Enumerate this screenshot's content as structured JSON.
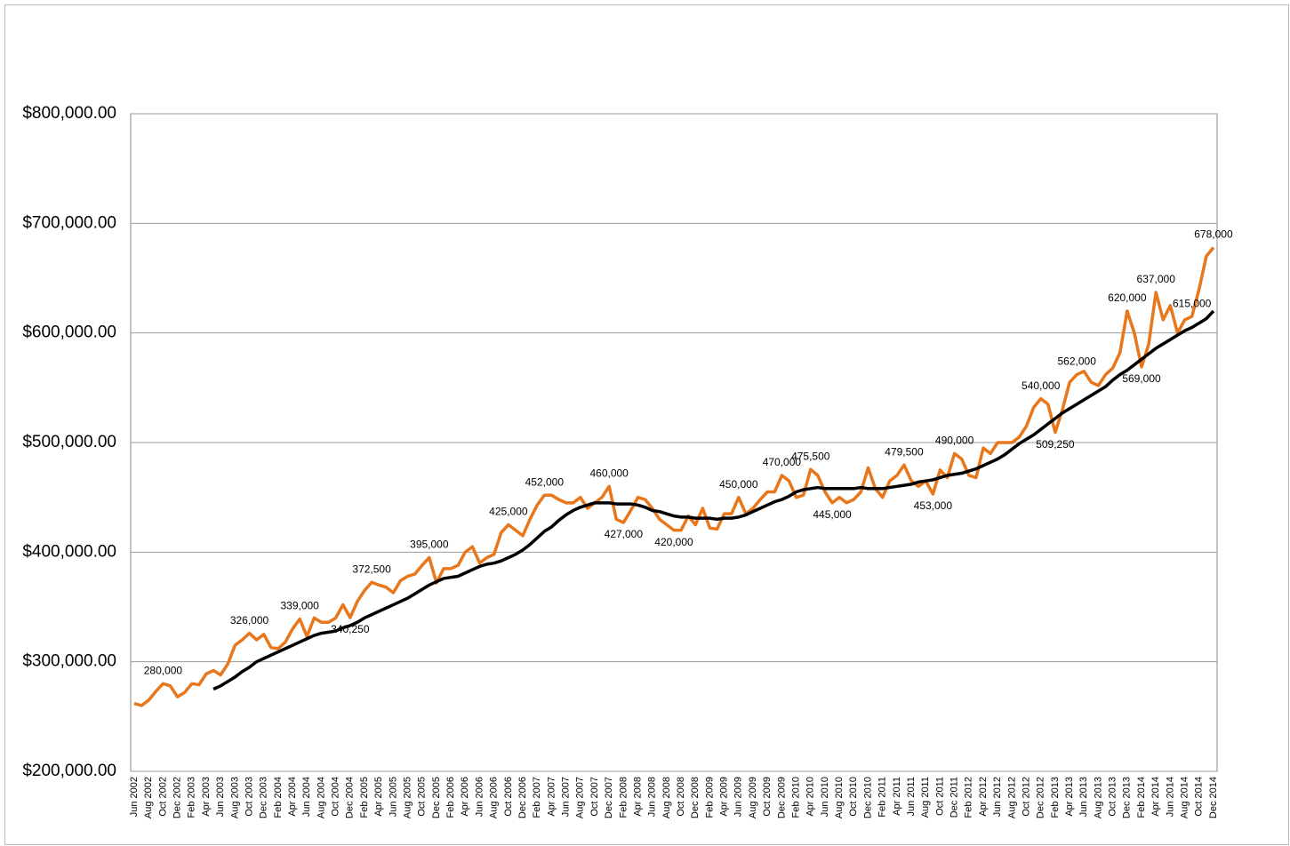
{
  "chart_data": {
    "type": "line",
    "categories": [
      "Jun 2002",
      null,
      "Aug 2002",
      null,
      "Oct 2002",
      null,
      "Dec 2002",
      null,
      "Feb 2003",
      null,
      "Apr 2003",
      null,
      "Jun 2003",
      null,
      "Aug 2003",
      null,
      "Oct 2003",
      null,
      "Dec 2003",
      null,
      "Feb 2004",
      null,
      "Apr 2004",
      null,
      "Jun 2004",
      null,
      "Aug 2004",
      null,
      "Oct 2004",
      null,
      "Dec 2004",
      null,
      "Feb 2005",
      null,
      "Apr 2005",
      null,
      "Jun 2005",
      null,
      "Aug 2005",
      null,
      "Oct 2005",
      null,
      "Dec 2005",
      null,
      "Feb 2006",
      null,
      "Apr 2006",
      null,
      "Jun 2006",
      null,
      "Aug 2006",
      null,
      "Oct 2006",
      null,
      "Dec 2006",
      null,
      "Feb 2007",
      null,
      "Apr 2007",
      null,
      "Jun 2007",
      null,
      "Aug 2007",
      null,
      "Oct 2007",
      null,
      "Dec 2007",
      null,
      "Feb 2008",
      null,
      "Apr 2008",
      null,
      "Jun 2008",
      null,
      "Aug 2008",
      null,
      "Oct 2008",
      null,
      "Dec 2008",
      null,
      "Feb 2009",
      null,
      "Apr 2009",
      null,
      "Jun 2009",
      null,
      "Aug 2009",
      null,
      "Oct 2009",
      null,
      "Dec 2009",
      null,
      "Feb 2010",
      null,
      "Apr 2010",
      null,
      "Jun 2010",
      null,
      "Aug 2010",
      null,
      "Oct 2010",
      null,
      "Dec 2010",
      null,
      "Feb 2011",
      null,
      "Apr 2011",
      null,
      "Jun 2011",
      null,
      "Aug 2011",
      null,
      "Oct 2011",
      null,
      "Dec 2011",
      null,
      "Feb 2012",
      null,
      "Apr 2012",
      null,
      "Jun 2012",
      null,
      "Aug 2012",
      null,
      "Oct 2012",
      null,
      "Dec 2012",
      null,
      "Feb 2013",
      null,
      "Apr 2013",
      null,
      "Jun 2013",
      null,
      "Aug 2013",
      null,
      "Oct 2013",
      null,
      "Dec 2013",
      null,
      "Feb 2014",
      null,
      "Apr 2014",
      null,
      "Jun 2014",
      null,
      "Aug 2014",
      null,
      "Oct 2014",
      null,
      "Dec 2014"
    ],
    "series": [
      {
        "color": "#e8761a",
        "values": [
          262000,
          260000,
          265000,
          273000,
          280000,
          278000,
          268000,
          272000,
          280000,
          279000,
          289000,
          292000,
          288000,
          298000,
          315000,
          320000,
          326000,
          320000,
          325000,
          313000,
          312000,
          318000,
          330000,
          339000,
          323000,
          340000,
          336000,
          336000,
          340000,
          352000,
          340250,
          355000,
          365000,
          372500,
          370000,
          368000,
          363000,
          374000,
          378000,
          380000,
          388000,
          395000,
          372000,
          385000,
          385000,
          388000,
          400000,
          405000,
          390000,
          395000,
          398000,
          418000,
          425000,
          420000,
          415000,
          430000,
          443000,
          452000,
          452000,
          448000,
          445000,
          445000,
          450000,
          440000,
          445000,
          450000,
          460000,
          430000,
          427000,
          438000,
          450000,
          448000,
          440000,
          430000,
          425000,
          420000,
          420000,
          433000,
          425000,
          440000,
          422000,
          421000,
          435000,
          435000,
          450000,
          435000,
          440000,
          448000,
          455000,
          455000,
          470000,
          465000,
          450000,
          452000,
          475500,
          470000,
          455000,
          445000,
          450000,
          445000,
          448000,
          455000,
          477000,
          458000,
          450000,
          465000,
          470000,
          479500,
          465000,
          460000,
          465000,
          453000,
          475000,
          468000,
          490000,
          485000,
          470000,
          468000,
          495000,
          490000,
          500000,
          500000,
          500000,
          505000,
          515000,
          532000,
          540000,
          535000,
          509250,
          530000,
          555000,
          562000,
          565000,
          555000,
          552000,
          562000,
          568000,
          582000,
          620000,
          600000,
          569000,
          590000,
          637000,
          612000,
          625000,
          600000,
          612000,
          615000,
          640000,
          670000,
          678000
        ],
        "value_labels": [
          null,
          null,
          null,
          null,
          "280,000",
          null,
          null,
          null,
          null,
          null,
          null,
          null,
          null,
          null,
          null,
          null,
          "326,000",
          null,
          null,
          null,
          null,
          null,
          null,
          "339,000",
          null,
          null,
          null,
          null,
          null,
          null,
          "340,250",
          null,
          null,
          "372,500",
          null,
          null,
          null,
          null,
          null,
          null,
          null,
          "395,000",
          null,
          null,
          null,
          null,
          null,
          null,
          null,
          null,
          null,
          null,
          "425,000",
          null,
          null,
          null,
          null,
          "452,000",
          null,
          null,
          null,
          null,
          null,
          null,
          null,
          null,
          "460,000",
          null,
          "427,000",
          null,
          null,
          null,
          null,
          null,
          null,
          "420,000",
          null,
          null,
          null,
          null,
          null,
          null,
          null,
          null,
          "450,000",
          null,
          null,
          null,
          null,
          null,
          "470,000",
          null,
          null,
          null,
          "475,500",
          null,
          null,
          "445,000",
          null,
          null,
          null,
          null,
          null,
          null,
          null,
          null,
          null,
          "479,500",
          null,
          null,
          null,
          "453,000",
          null,
          null,
          "490,000",
          null,
          null,
          null,
          null,
          null,
          null,
          null,
          null,
          null,
          null,
          null,
          "540,000",
          null,
          "509,250",
          null,
          null,
          "562,000",
          null,
          null,
          null,
          null,
          null,
          null,
          "620,000",
          null,
          "569,000",
          null,
          "637,000",
          null,
          null,
          null,
          null,
          "615,000",
          null,
          null,
          "678,000"
        ]
      },
      {
        "color": "#000000",
        "values": [
          null,
          null,
          null,
          null,
          null,
          null,
          null,
          null,
          null,
          null,
          null,
          275000,
          278000,
          282000,
          286000,
          291000,
          295000,
          300000,
          303000,
          306000,
          309000,
          312000,
          315000,
          318000,
          321000,
          324000,
          326000,
          327000,
          328000,
          331000,
          333000,
          336000,
          340000,
          343000,
          346000,
          349000,
          352000,
          355000,
          358000,
          362000,
          366000,
          370000,
          373000,
          376000,
          377000,
          378000,
          381000,
          384000,
          387000,
          389000,
          390000,
          392000,
          395000,
          398000,
          402000,
          407000,
          413000,
          419000,
          423000,
          429000,
          434000,
          438000,
          441000,
          443000,
          445000,
          445000,
          445000,
          444000,
          444000,
          444000,
          443000,
          441000,
          438000,
          437000,
          435000,
          433000,
          432000,
          432000,
          431000,
          431000,
          431000,
          430000,
          431000,
          431000,
          432000,
          434000,
          437000,
          440000,
          443000,
          446000,
          448000,
          451000,
          455000,
          457000,
          458000,
          459000,
          458000,
          458000,
          458000,
          458000,
          458000,
          459000,
          458000,
          458000,
          458000,
          459000,
          460000,
          461000,
          462000,
          464000,
          465000,
          466000,
          468000,
          470000,
          471000,
          472000,
          474000,
          476000,
          479000,
          482000,
          485000,
          489000,
          494000,
          499000,
          503000,
          507000,
          512000,
          517000,
          522000,
          527000,
          531000,
          535000,
          539000,
          543000,
          547000,
          551000,
          557000,
          562000,
          566000,
          571000,
          576000,
          581000,
          586000,
          590000,
          594000,
          598000,
          602000,
          605000,
          609000,
          613000,
          620000
        ]
      }
    ],
    "ylim": [
      200000,
      800000
    ],
    "yticks": [
      {
        "value": 200000,
        "label": "$200,000.00"
      },
      {
        "value": 300000,
        "label": "$300,000.00"
      },
      {
        "value": 400000,
        "label": "$400,000.00"
      },
      {
        "value": 500000,
        "label": "$500,000.00"
      },
      {
        "value": 600000,
        "label": "$600,000.00"
      },
      {
        "value": 700000,
        "label": "$700,000.00"
      },
      {
        "value": 800000,
        "label": "$800,000.00"
      }
    ],
    "grid": true
  }
}
